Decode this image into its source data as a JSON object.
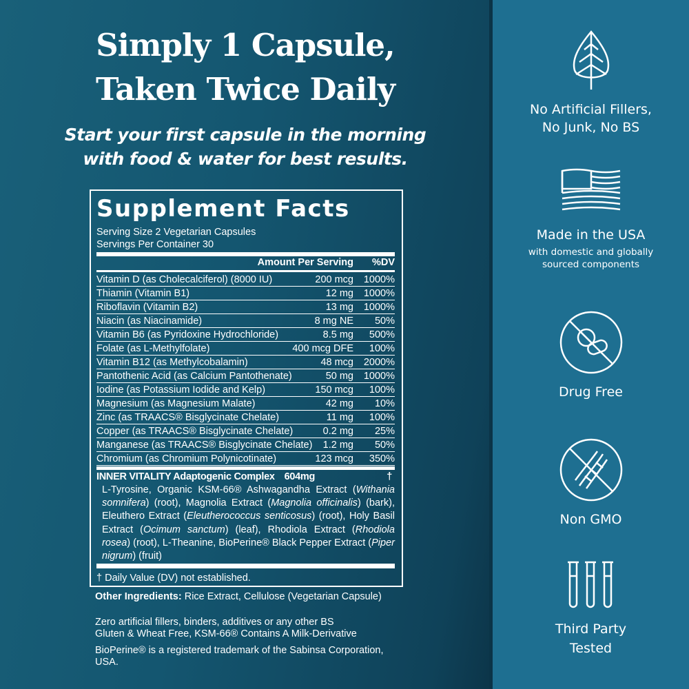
{
  "headline": {
    "line1": "Simply 1 Capsule,",
    "line2": "Taken Twice Daily"
  },
  "subhead": {
    "line1": "Start your first capsule in the morning",
    "line2": "with food & water for best results."
  },
  "facts": {
    "title": "Supplement Facts",
    "serving_size": "Serving Size 2 Vegetarian Capsules",
    "servings_per_container": "Servings Per Container 30",
    "col_amount": "Amount Per Serving",
    "col_dv": "%DV",
    "rows": [
      {
        "name": "Vitamin D (as Cholecalciferol) (8000 IU)",
        "amount": "200 mcg",
        "dv": "1000%"
      },
      {
        "name": "Thiamin (Vitamin B1)",
        "amount": "12 mg",
        "dv": "1000%"
      },
      {
        "name": "Riboflavin (Vitamin B2)",
        "amount": "13 mg",
        "dv": "1000%"
      },
      {
        "name": "Niacin (as Niacinamide)",
        "amount": "8 mg NE",
        "dv": "50%"
      },
      {
        "name": "Vitamin B6 (as Pyridoxine Hydrochloride)",
        "amount": "8.5 mg",
        "dv": "500%"
      },
      {
        "name": "Folate (as L-Methylfolate)",
        "amount": "400 mcg DFE",
        "dv": "100%"
      },
      {
        "name": "Vitamin B12 (as Methylcobalamin)",
        "amount": "48 mcg",
        "dv": "2000%"
      },
      {
        "name": "Pantothenic Acid (as Calcium Pantothenate)",
        "amount": "50 mg",
        "dv": "1000%"
      },
      {
        "name": "Iodine (as Potassium Iodide and Kelp)",
        "amount": "150 mcg",
        "dv": "100%"
      },
      {
        "name": "Magnesium (as Magnesium Malate)",
        "amount": "42 mg",
        "dv": "10%"
      },
      {
        "name": "Zinc (as TRAACS® Bisglycinate Chelate)",
        "amount": "11 mg",
        "dv": "100%"
      },
      {
        "name": "Copper (as TRAACS® Bisglycinate Chelate)",
        "amount": "0.2 mg",
        "dv": "25%"
      },
      {
        "name": "Manganese (as TRAACS® Bisglycinate Chelate)",
        "amount": "1.2 mg",
        "dv": "50%"
      },
      {
        "name": "Chromium (as Chromium Polynicotinate)",
        "amount": "123 mcg",
        "dv": "350%"
      }
    ],
    "complex": {
      "name": "INNER VITALITY Adaptogenic Complex",
      "amount": "604mg",
      "dv": "†",
      "ingredients": [
        "L-Tyrosine, Organic KSM-66® Ashwagandha Extract (",
        {
          "i": "Withania somnifera"
        },
        ") (root), Magnolia Extract (",
        {
          "i": "Magnolia officinalis"
        },
        ") (bark), Eleuthero Extract (",
        {
          "i": "Eleutherococcus senticosus"
        },
        ") (root), Holy Basil Extract (",
        {
          "i": "Ocimum sanctum"
        },
        ") (leaf), Rhodiola Extract (",
        {
          "i": "Rhodiola rosea"
        },
        ") (root), L-Theanine, BioPerine® Black Pepper Extract (",
        {
          "i": "Piper nigrum"
        },
        ") (fruit)"
      ]
    },
    "footnote": "† Daily Value (DV) not established."
  },
  "other": {
    "label": "Other Ingredients:",
    "text": " Rice Extract, Cellulose (Vegetarian Capsule)",
    "line2": "Zero artificial fillers, binders, additives or any other BS",
    "line3": "Gluten & Wheat Free, KSM-66® Contains A Milk-Derivative",
    "trademark": "BioPerine® is a registered trademark of the Sabinsa Corporation, USA."
  },
  "features": [
    {
      "icon": "leaf-icon",
      "title1": "No Artificial Fillers,",
      "title2": "No Junk, No BS"
    },
    {
      "icon": "usa-flag-icon",
      "title1": "Made in the USA",
      "sub1": "with domestic and globally",
      "sub2": "sourced components"
    },
    {
      "icon": "no-pills-icon",
      "title1": "Drug Free"
    },
    {
      "icon": "no-dna-icon",
      "title1": "Non GMO"
    },
    {
      "icon": "test-tubes-icon",
      "title1": "Third Party",
      "title2": "Tested"
    }
  ],
  "colors": {
    "left_bg": "#145670",
    "right_bg": "#1e6f91",
    "text": "#ffffff"
  }
}
